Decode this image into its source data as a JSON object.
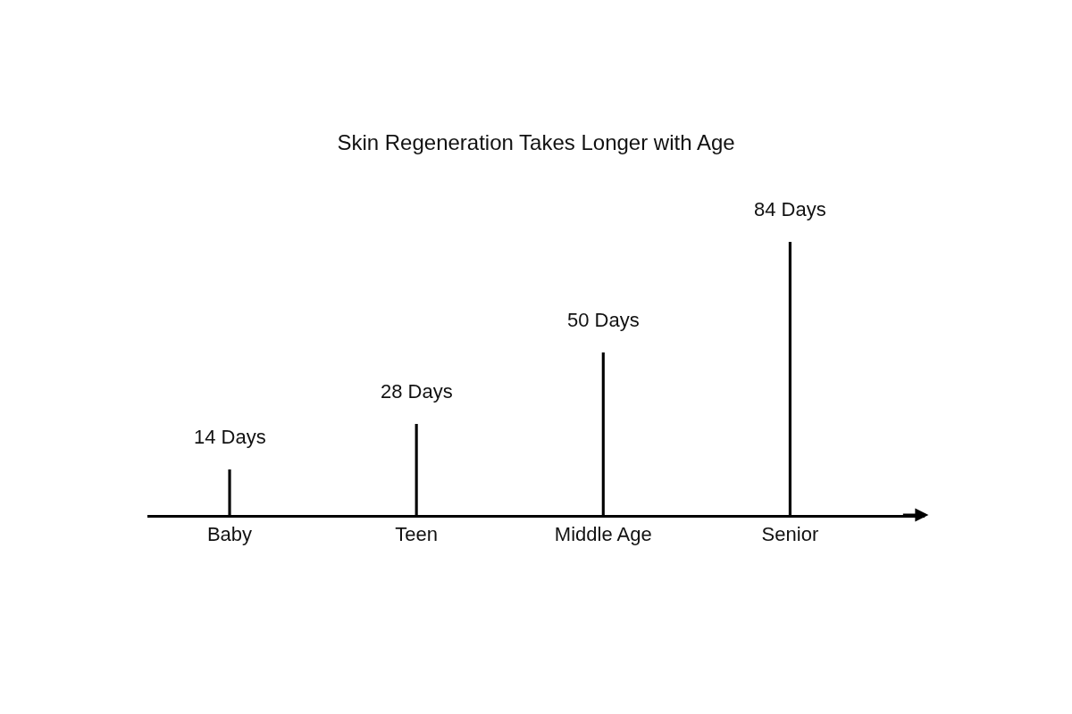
{
  "chart_data": {
    "type": "bar",
    "title": "Skin Regeneration Takes Longer with Age",
    "categories": [
      "Baby",
      "Teen",
      "Middle Age",
      "Senior"
    ],
    "values": [
      14,
      28,
      50,
      84
    ],
    "value_labels": [
      "14 Days",
      "28 Days",
      "50 Days",
      "84 Days"
    ],
    "color": "#000000"
  }
}
